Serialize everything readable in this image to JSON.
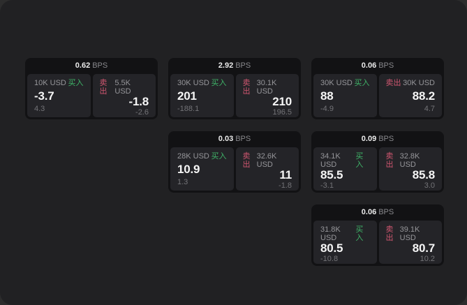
{
  "labels": {
    "bps_unit": "BPS",
    "buy": "买入",
    "sell": "卖出"
  },
  "colors": {
    "buy": "#3fb368",
    "sell": "#cf5670",
    "window_background": "#212123",
    "card_background": "#121214",
    "panel_background": "#242428"
  },
  "cards": [
    {
      "col": 1,
      "row": 1,
      "bps": "0.62",
      "buy": {
        "size": "10K USD",
        "price": "-3.7",
        "delta": "4.3"
      },
      "sell": {
        "size": "5.5K USD",
        "price": "-1.8",
        "delta": "-2.6"
      }
    },
    {
      "col": 2,
      "row": 1,
      "bps": "2.92",
      "buy": {
        "size": "30K USD",
        "price": "201",
        "delta": "-188.1"
      },
      "sell": {
        "size": "30.1K USD",
        "price": "210",
        "delta": "196.5"
      }
    },
    {
      "col": 3,
      "row": 1,
      "bps": "0.06",
      "buy": {
        "size": "30K USD",
        "price": "88",
        "delta": "-4.9"
      },
      "sell": {
        "size": "30K USD",
        "price": "88.2",
        "delta": "4.7"
      }
    },
    {
      "col": 2,
      "row": 2,
      "bps": "0.03",
      "buy": {
        "size": "28K USD",
        "price": "10.9",
        "delta": "1.3"
      },
      "sell": {
        "size": "32.6K USD",
        "price": "11",
        "delta": "-1.8"
      }
    },
    {
      "col": 3,
      "row": 2,
      "bps": "0.09",
      "buy": {
        "size": "34.1K USD",
        "price": "85.5",
        "delta": "-3.1"
      },
      "sell": {
        "size": "32.8K USD",
        "price": "85.8",
        "delta": "3.0"
      }
    },
    {
      "col": 3,
      "row": 3,
      "bps": "0.06",
      "buy": {
        "size": "31.8K USD",
        "price": "80.5",
        "delta": "-10.8"
      },
      "sell": {
        "size": "39.1K USD",
        "price": "80.7",
        "delta": "10.2"
      }
    }
  ]
}
